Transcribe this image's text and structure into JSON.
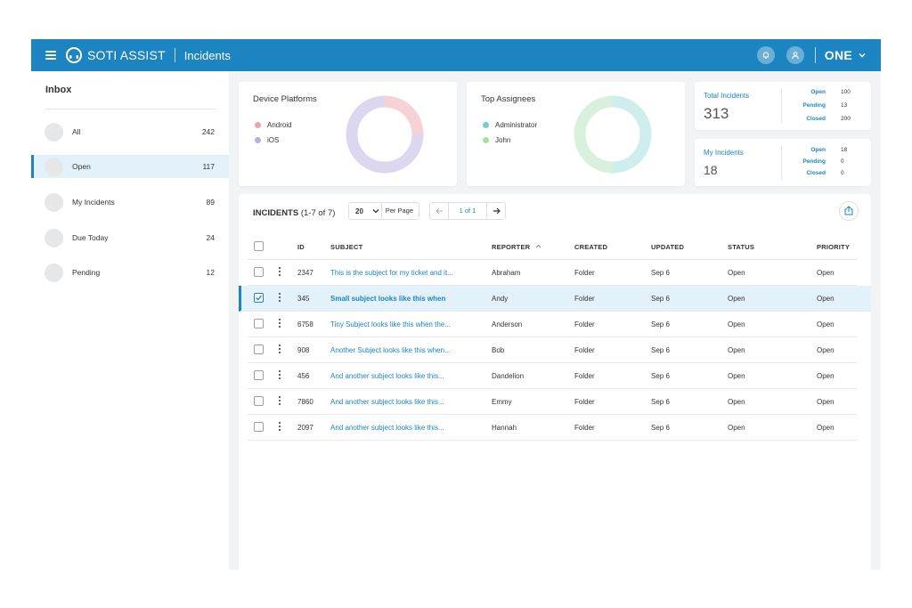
{
  "header": {
    "brand": "SOTI ASSIST",
    "section": "Incidents",
    "org": "ONE"
  },
  "sidebar": {
    "title": "Inbox",
    "items": [
      {
        "label": "All",
        "count": "242",
        "active": false
      },
      {
        "label": "Open",
        "count": "117",
        "active": true
      },
      {
        "label": "My Incidents",
        "count": "89",
        "active": false
      },
      {
        "label": "Due Today",
        "count": "24",
        "active": false
      },
      {
        "label": "Pending",
        "count": "12",
        "active": false
      }
    ]
  },
  "device_platforms": {
    "title": "Device Platforms",
    "legend": [
      {
        "label": "Android",
        "color": "#f0a3a8"
      },
      {
        "label": "iOS",
        "color": "#b9aedd"
      }
    ]
  },
  "top_assignees": {
    "title": "Top Assignees",
    "legend": [
      {
        "label": "Administrator",
        "color": "#73d0cf"
      },
      {
        "label": "John",
        "color": "#a8dea0"
      }
    ]
  },
  "total_incidents": {
    "label": "Total Incidents",
    "value": "313",
    "rows": [
      {
        "k": "Open",
        "v": "100"
      },
      {
        "k": "Pending",
        "v": "13"
      },
      {
        "k": "Closed",
        "v": "200"
      }
    ]
  },
  "my_incidents": {
    "label": "My Incidents",
    "value": "18",
    "rows": [
      {
        "k": "Open",
        "v": "18"
      },
      {
        "k": "Pending",
        "v": "0"
      },
      {
        "k": "Closed",
        "v": "0"
      }
    ]
  },
  "incidents": {
    "title": "INCIDENTS",
    "count_text": "(1-7 of 7)",
    "per_page_value": "20",
    "per_page_label": "Per Page",
    "page_text": "1 of 1",
    "columns": [
      "ID",
      "SUBJECT",
      "REPORTER",
      "CREATED",
      "UPDATED",
      "STATUS",
      "PRIORITY"
    ],
    "rows": [
      {
        "id": "2347",
        "subject": "This is the subject for my ticket and it...",
        "reporter": "Abraham",
        "created": "Folder",
        "updated": "Sep 6",
        "status": "Open",
        "priority": "Open",
        "selected": false
      },
      {
        "id": "345",
        "subject": "Small subject looks like this when",
        "reporter": "Andy",
        "created": "Folder",
        "updated": "Sep 6",
        "status": "Open",
        "priority": "Open",
        "selected": true
      },
      {
        "id": "6758",
        "subject": "Tiny Subject looks like this when the...",
        "reporter": "Anderson",
        "created": "Folder",
        "updated": "Sep 6",
        "status": "Open",
        "priority": "Open",
        "selected": false
      },
      {
        "id": "908",
        "subject": "Another Subject looks like this when...",
        "reporter": "Bob",
        "created": "Folder",
        "updated": "Sep 6",
        "status": "Open",
        "priority": "Open",
        "selected": false
      },
      {
        "id": "456",
        "subject": "And another subject looks like this...",
        "reporter": "Dandelion",
        "created": "Folder",
        "updated": "Sep 6",
        "status": "Open",
        "priority": "Open",
        "selected": false
      },
      {
        "id": "7860",
        "subject": "And another subject looks like this...",
        "reporter": "Emmy",
        "created": "Folder",
        "updated": "Sep 6",
        "status": "Open",
        "priority": "Open",
        "selected": false
      },
      {
        "id": "2097",
        "subject": "And another subject looks like this...",
        "reporter": "Hannah",
        "created": "Folder",
        "updated": "Sep 6",
        "status": "Open",
        "priority": "Open",
        "selected": false
      }
    ]
  },
  "colors": {
    "accent": "#1d84c2",
    "selected_row": "#e3f2fa"
  }
}
